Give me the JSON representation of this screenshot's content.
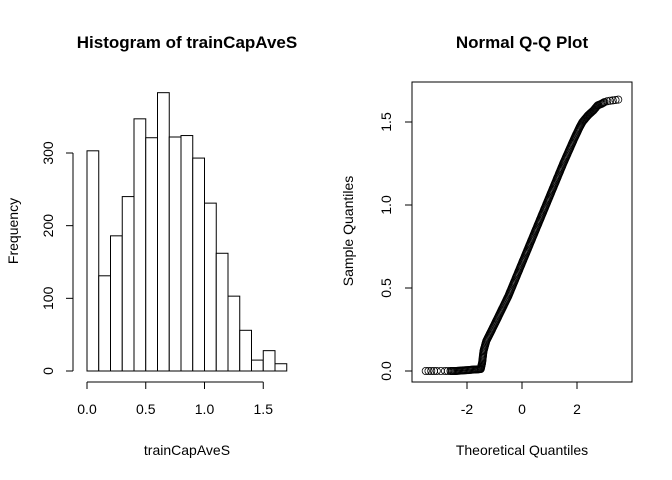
{
  "chart_data": [
    {
      "type": "bar",
      "subtype": "histogram",
      "title": "Histogram of trainCapAveS",
      "xlabel": "trainCapAveS",
      "ylabel": "Frequency",
      "bin_edges": [
        0.0,
        0.1,
        0.2,
        0.3,
        0.4,
        0.5,
        0.6,
        0.7,
        0.8,
        0.9,
        1.0,
        1.1,
        1.2,
        1.3,
        1.4,
        1.5,
        1.6,
        1.7
      ],
      "values": [
        303,
        131,
        186,
        240,
        347,
        321,
        383,
        322,
        324,
        293,
        231,
        162,
        103,
        56,
        15,
        28,
        10
      ],
      "xticks": [
        0.0,
        0.5,
        1.0,
        1.5
      ],
      "xtick_labels": [
        "0.0",
        "0.5",
        "1.0",
        "1.5"
      ],
      "yticks": [
        0,
        100,
        200,
        300
      ],
      "ytick_labels": [
        "0",
        "100",
        "200",
        "300"
      ],
      "ylim": [
        0,
        385
      ],
      "grid": false
    },
    {
      "type": "scatter",
      "subtype": "qq",
      "title": "Normal Q-Q Plot",
      "xlabel": "Theoretical Quantiles",
      "ylabel": "Sample Quantiles",
      "xlim": [
        -3.6,
        4.0
      ],
      "ylim": [
        -0.05,
        1.7
      ],
      "xticks": [
        -2,
        0,
        2
      ],
      "xtick_labels": [
        "-2",
        "0",
        "2"
      ],
      "yticks": [
        0.0,
        0.5,
        1.0,
        1.5
      ],
      "ytick_labels": [
        "0.0",
        "0.5",
        "1.0",
        "1.5"
      ],
      "curve_points": [
        [
          -3.5,
          0.0
        ],
        [
          -3.3,
          0.0
        ],
        [
          -3.1,
          0.0
        ],
        [
          -2.95,
          0.0
        ],
        [
          -2.8,
          0.0
        ],
        [
          -2.6,
          0.0
        ],
        [
          -2.4,
          0.0
        ],
        [
          -2.2,
          0.003
        ],
        [
          -2.0,
          0.005
        ],
        [
          -1.8,
          0.008
        ],
        [
          -1.6,
          0.01
        ],
        [
          -1.5,
          0.012
        ],
        [
          -1.45,
          0.05
        ],
        [
          -1.4,
          0.12
        ],
        [
          -1.3,
          0.18
        ],
        [
          -1.0,
          0.28
        ],
        [
          -0.5,
          0.45
        ],
        [
          0.0,
          0.65
        ],
        [
          0.5,
          0.85
        ],
        [
          1.0,
          1.05
        ],
        [
          1.5,
          1.25
        ],
        [
          1.9,
          1.4
        ],
        [
          2.1,
          1.47
        ],
        [
          2.2,
          1.5
        ],
        [
          2.4,
          1.54
        ],
        [
          2.6,
          1.57
        ],
        [
          2.75,
          1.6
        ],
        [
          2.9,
          1.61
        ],
        [
          3.0,
          1.62
        ],
        [
          3.1,
          1.625
        ],
        [
          3.2,
          1.628
        ],
        [
          3.3,
          1.63
        ],
        [
          3.5,
          1.635
        ]
      ],
      "grid": false
    }
  ]
}
